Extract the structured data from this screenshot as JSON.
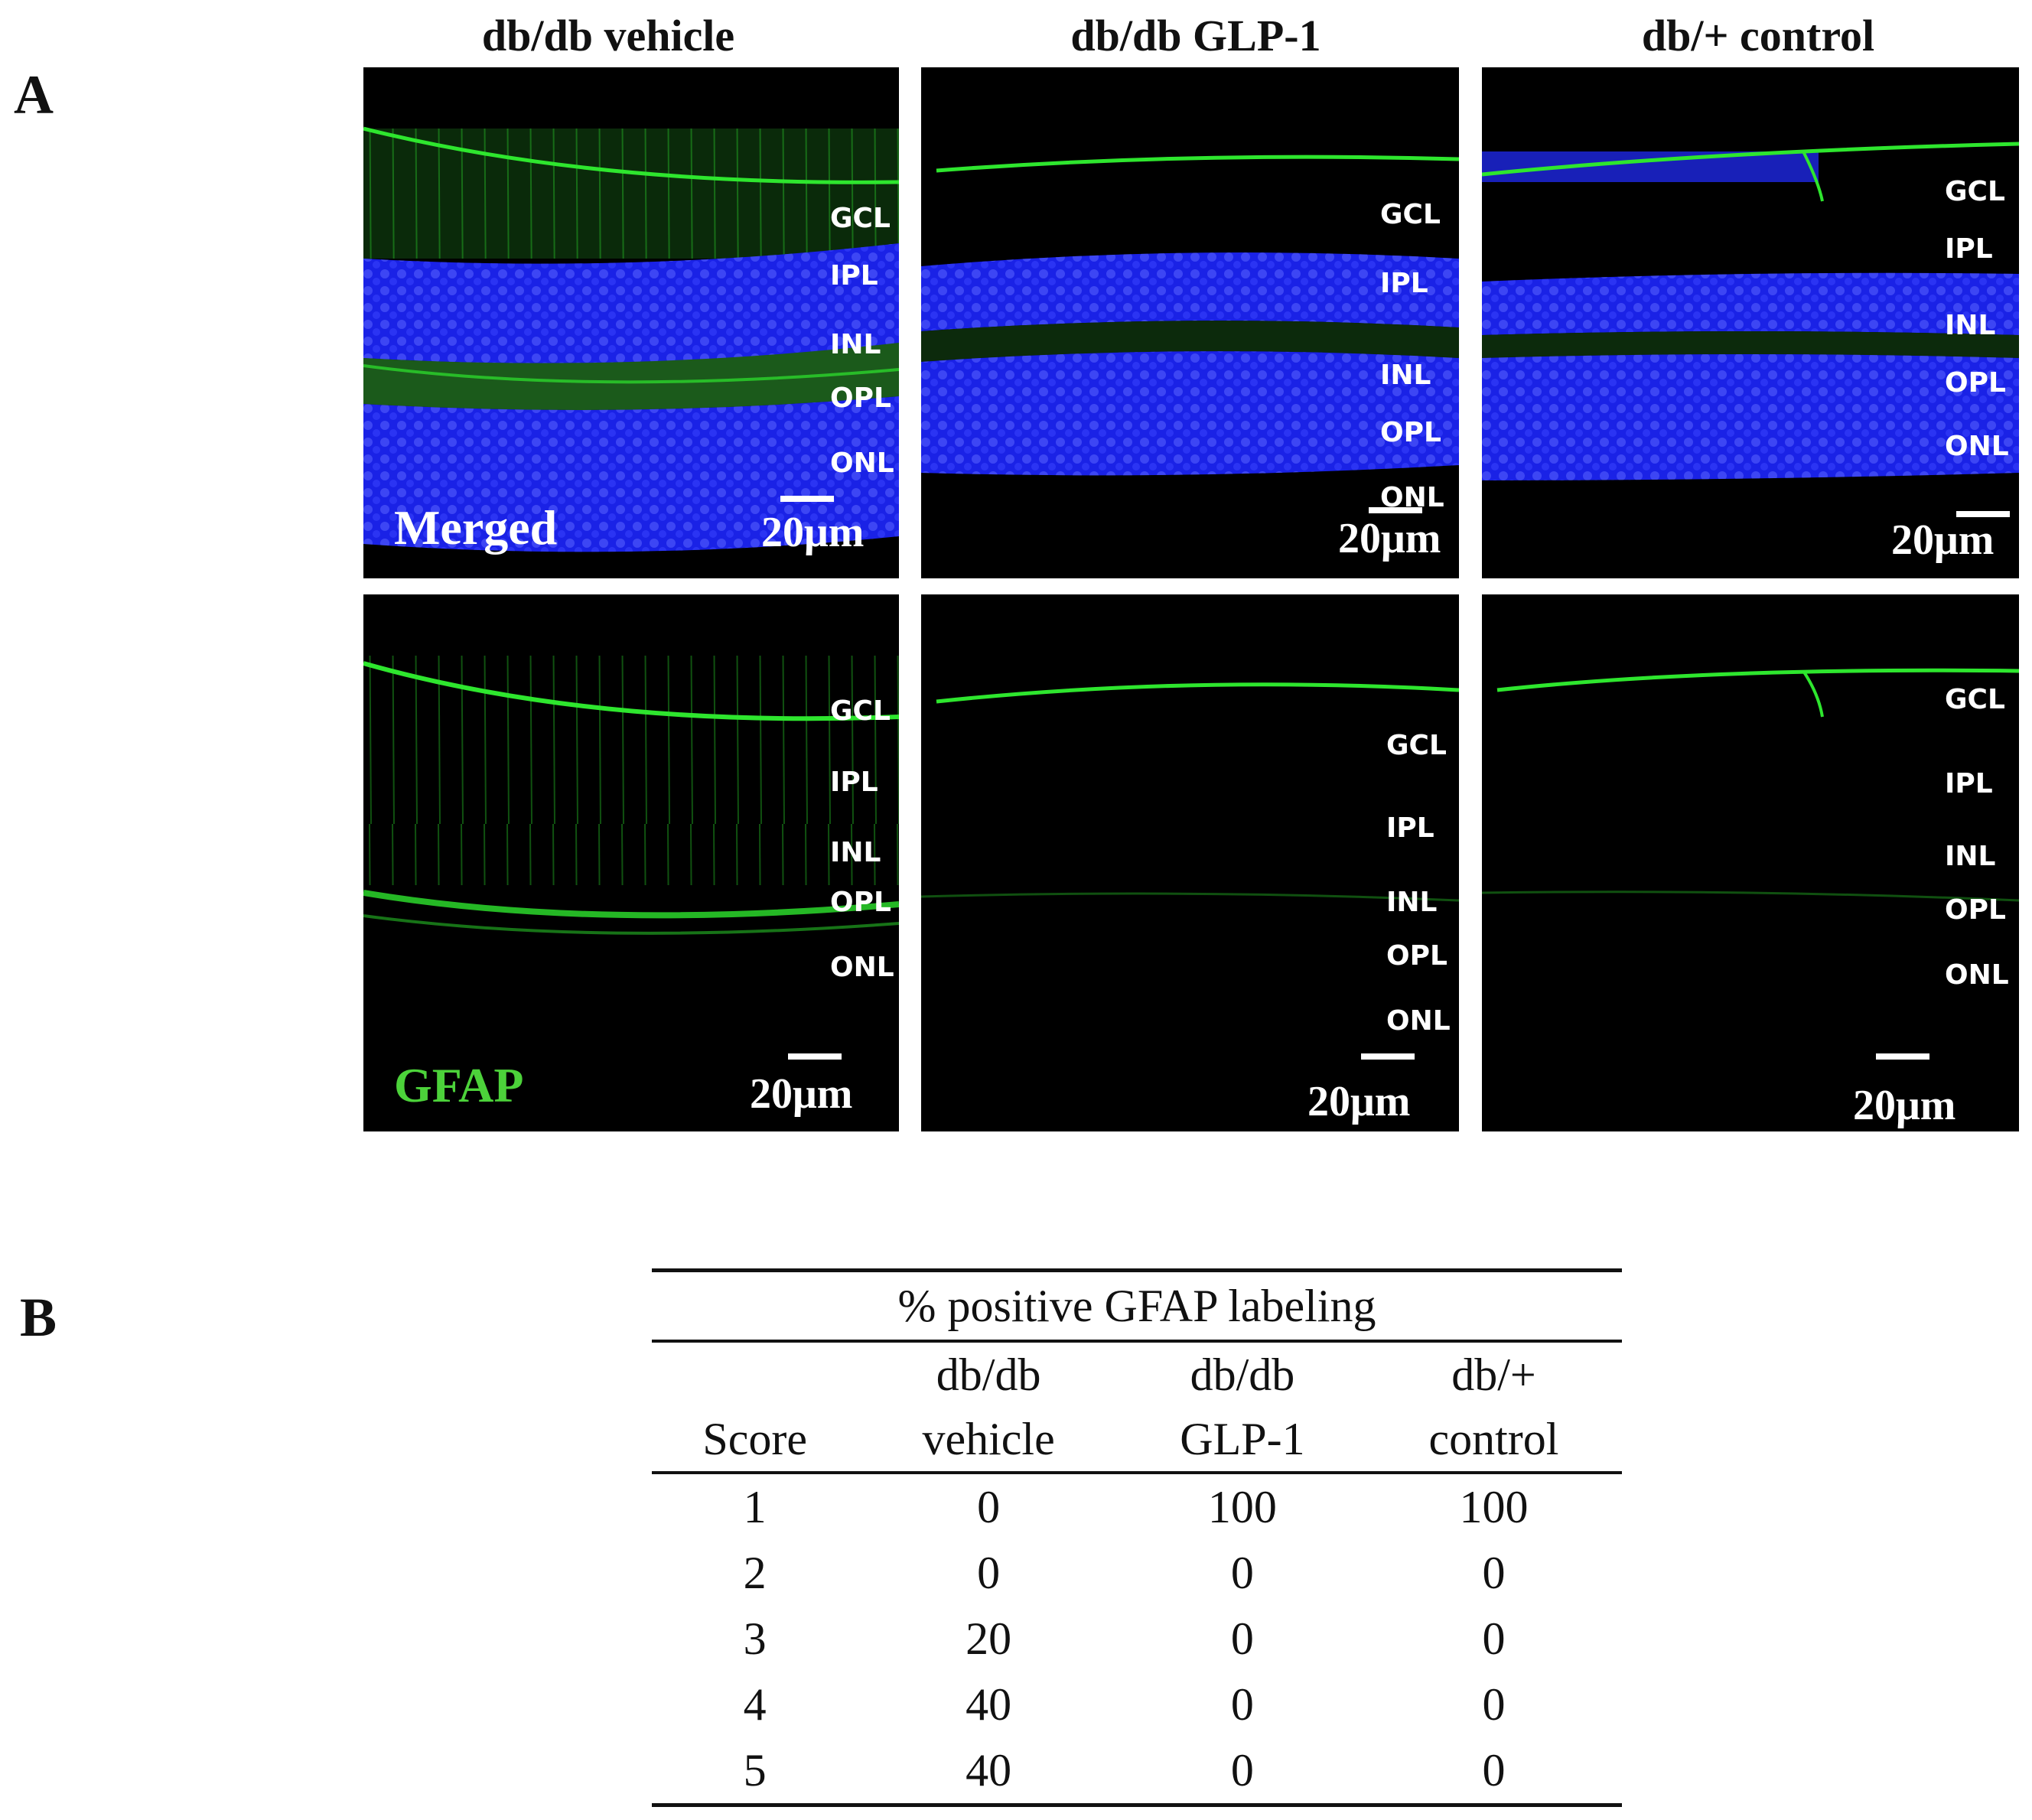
{
  "panel_a": {
    "label": "A",
    "columns": [
      {
        "title": "db/db vehicle"
      },
      {
        "title": "db/db GLP-1"
      },
      {
        "title": "db/+ control"
      }
    ],
    "rows": [
      {
        "stain": "Merged",
        "stain_color": "#ffffff",
        "panels": [
          {
            "layers": [
              "GCL",
              "IPL",
              "INL",
              "OPL",
              "ONL"
            ],
            "scale": "20μm"
          },
          {
            "layers": [
              "GCL",
              "IPL",
              "INL",
              "OPL",
              "ONL"
            ],
            "scale": "20μm"
          },
          {
            "layers": [
              "GCL",
              "IPL",
              "INL",
              "OPL",
              "ONL"
            ],
            "scale": "20μm"
          }
        ]
      },
      {
        "stain": "GFAP",
        "stain_color": "#4cd23a",
        "panels": [
          {
            "layers": [
              "GCL",
              "IPL",
              "INL",
              "OPL",
              "ONL"
            ],
            "scale": "20μm"
          },
          {
            "layers": [
              "GCL",
              "IPL",
              "INL",
              "OPL",
              "ONL"
            ],
            "scale": "20μm"
          },
          {
            "layers": [
              "GCL",
              "IPL",
              "INL",
              "OPL",
              "ONL"
            ],
            "scale": "20μm"
          }
        ]
      }
    ],
    "colors": {
      "nuclei": "#1a22e6",
      "gfap": "#2ee62e",
      "background": "#000000"
    }
  },
  "panel_b": {
    "label": "B",
    "table": {
      "title": "% positive GFAP labeling",
      "headers": [
        {
          "line1": "",
          "line2": "Score"
        },
        {
          "line1": "db/db",
          "line2": "vehicle"
        },
        {
          "line1": "db/db",
          "line2": "GLP-1"
        },
        {
          "line1": "db/+",
          "line2": "control"
        }
      ],
      "rows": [
        [
          "1",
          "0",
          "100",
          "100"
        ],
        [
          "2",
          "0",
          "0",
          "0"
        ],
        [
          "3",
          "20",
          "0",
          "0"
        ],
        [
          "4",
          "40",
          "0",
          "0"
        ],
        [
          "5",
          "40",
          "0",
          "0"
        ]
      ]
    }
  }
}
